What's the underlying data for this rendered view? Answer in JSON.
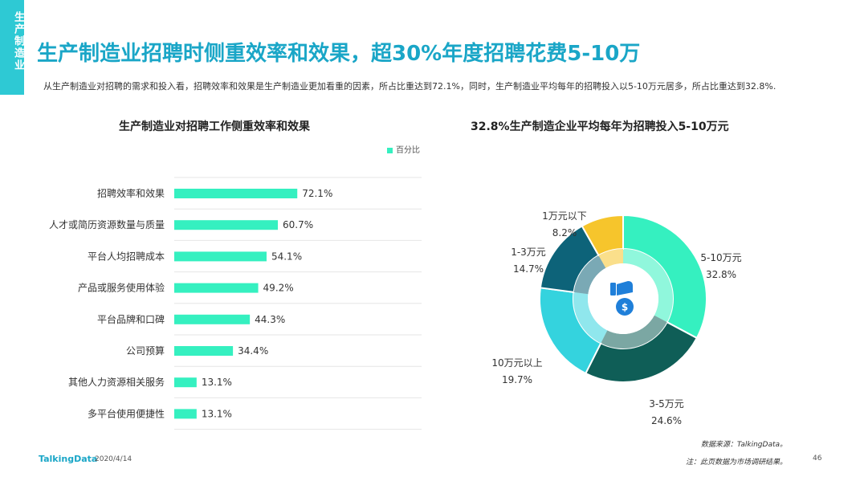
{
  "side_tab": "生产制造业",
  "title": "生产制造业招聘时侧重效率和效果，超30%年度招聘花费5-10万",
  "description": "从生产制造业对招聘的需求和投入看，招聘效率和效果是生产制造业更加看重的因素，所占比重达到72.1%，同时，生产制造业平均每年的招聘投入以5-10万元居多，所占比重达到32.8%.",
  "bar_subtitle": "生产制造业对招聘工作侧重效率和效果",
  "pie_subtitle": "32.8%生产制造企业平均每年为招聘投入5-10万元",
  "colors": {
    "accent": "#1aa6c7",
    "bar": "#35f0c0"
  },
  "chart_data": [
    {
      "type": "bar",
      "orientation": "horizontal",
      "title": "生产制造业对招聘工作侧重效率和效果",
      "legend": "百分比",
      "categories": [
        "招聘效率和效果",
        "人才或简历资源数量与质量",
        "平台人均招聘成本",
        "产品或服务使用体验",
        "平台品牌和口碑",
        "公司预算",
        "其他人力资源相关服务",
        "多平台使用便捷性"
      ],
      "values": [
        72.1,
        60.7,
        54.1,
        49.2,
        44.3,
        34.4,
        13.1,
        13.1
      ],
      "value_labels": [
        "72.1%",
        "60.7%",
        "54.1%",
        "49.2%",
        "44.3%",
        "34.4%",
        "13.1%",
        "13.1%"
      ],
      "xlim": [
        0,
        100
      ]
    },
    {
      "type": "pie",
      "variant": "donut",
      "title": "32.8%生产制造企业平均每年为招聘投入5-10万元",
      "slices": [
        {
          "label": "5-10万元",
          "value": 32.8,
          "value_label": "32.8%",
          "color": "#35f0c0"
        },
        {
          "label": "3-5万元",
          "value": 24.6,
          "value_label": "24.6%",
          "color": "#0f5e57"
        },
        {
          "label": "10万元以上",
          "value": 19.7,
          "value_label": "19.7%",
          "color": "#34d3de"
        },
        {
          "label": "1-3万元",
          "value": 14.7,
          "value_label": "14.7%",
          "color": "#0d6379"
        },
        {
          "label": "1万元以下",
          "value": 8.2,
          "value_label": "8.2%",
          "color": "#f6c52c"
        }
      ]
    }
  ],
  "footer": {
    "logo": "TalkingData",
    "date": "2020/4/14",
    "source": "数据来源：TalkingData。",
    "note": "注：此页数据为市场调研结果。",
    "page": "46"
  }
}
